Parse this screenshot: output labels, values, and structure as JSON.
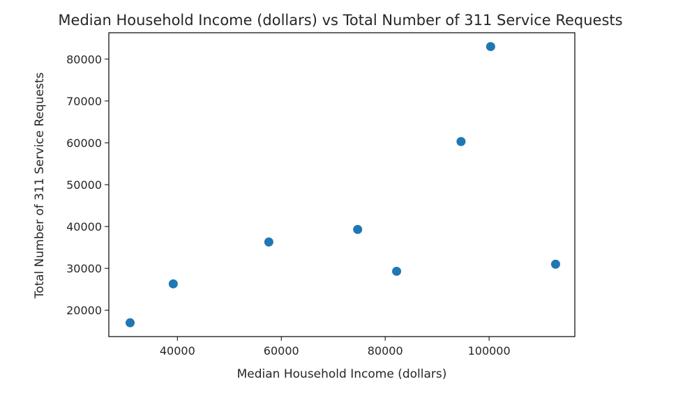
{
  "chart_data": {
    "type": "scatter",
    "title": "Median Household Income (dollars) vs Total Number of 311 Service Requests",
    "xlabel": "Median Household Income (dollars)",
    "ylabel": "Total Number of 311 Service Requests",
    "xlim": [
      26800,
      116500
    ],
    "ylim": [
      13700,
      86300
    ],
    "xticks": [
      40000,
      60000,
      80000,
      100000
    ],
    "xtick_labels": [
      "40000",
      "60000",
      "80000",
      "100000"
    ],
    "yticks": [
      20000,
      30000,
      40000,
      50000,
      60000,
      70000,
      80000
    ],
    "ytick_labels": [
      "20000",
      "30000",
      "40000",
      "50000",
      "60000",
      "70000",
      "80000"
    ],
    "grid": false,
    "legend": "none",
    "marker_color": "#1f77b4",
    "points": [
      {
        "x": 30900,
        "y": 17000
      },
      {
        "x": 39200,
        "y": 26300
      },
      {
        "x": 57600,
        "y": 36300
      },
      {
        "x": 74700,
        "y": 39300
      },
      {
        "x": 82200,
        "y": 29300
      },
      {
        "x": 94600,
        "y": 60300
      },
      {
        "x": 100300,
        "y": 83000
      },
      {
        "x": 112800,
        "y": 31000
      }
    ]
  }
}
